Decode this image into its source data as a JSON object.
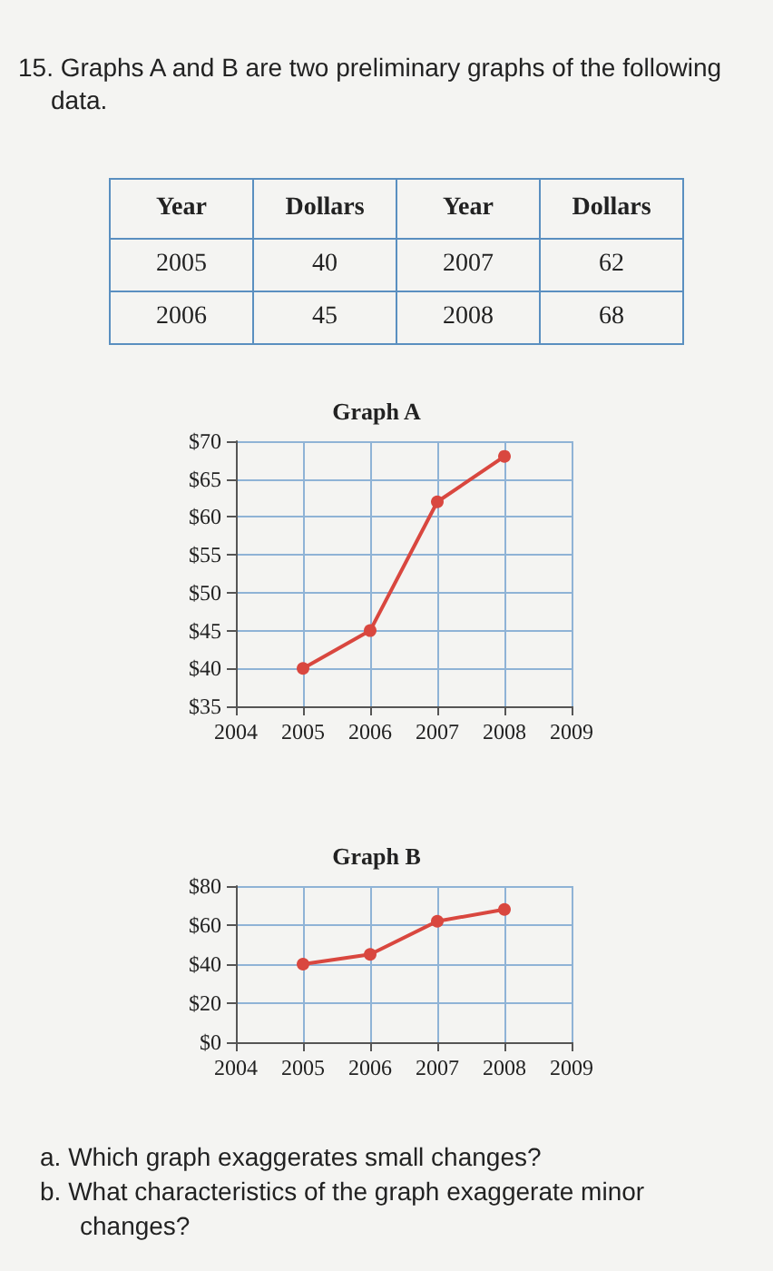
{
  "chart_data": [
    {
      "type": "other",
      "annotations": [
        "15. Graphs A and B are two preliminary graphs of the following data.",
        "Year",
        "Dollars",
        "Year",
        "Dollars",
        "2005",
        "40",
        "2007",
        "62",
        "2006",
        "45",
        "2008",
        "68"
      ]
    },
    {
      "type": "line",
      "title": "Graph A",
      "x": [
        2005,
        2006,
        2007,
        2008
      ],
      "values": [
        40,
        45,
        62,
        68
      ],
      "color": "#d9473f",
      "marker": "circle",
      "line_style": "solid",
      "grid": true,
      "xlim": [
        2004,
        2009
      ],
      "xticks": [
        2004,
        2005,
        2006,
        2007,
        2008,
        2009
      ],
      "ylim": [
        35,
        70
      ],
      "yticks": [
        {
          "value": 35,
          "label": "$35"
        },
        {
          "value": 40,
          "label": "$40"
        },
        {
          "value": 45,
          "label": "$45"
        },
        {
          "value": 50,
          "label": "$50"
        },
        {
          "value": 55,
          "label": "$55"
        },
        {
          "value": 60,
          "label": "$60"
        },
        {
          "value": 65,
          "label": "$65"
        },
        {
          "value": 70,
          "label": "$70"
        }
      ]
    },
    {
      "type": "line",
      "title": "Graph B",
      "x": [
        2005,
        2006,
        2007,
        2008
      ],
      "values": [
        40,
        45,
        62,
        68
      ],
      "color": "#d9473f",
      "marker": "circle",
      "line_style": "solid",
      "grid": true,
      "xlim": [
        2004,
        2009
      ],
      "xticks": [
        2004,
        2005,
        2006,
        2007,
        2008,
        2009
      ],
      "ylim": [
        0,
        80
      ],
      "yticks": [
        {
          "value": 0,
          "label": "$0"
        },
        {
          "value": 20,
          "label": "$20"
        },
        {
          "value": 40,
          "label": "$40"
        },
        {
          "value": 60,
          "label": "$60"
        },
        {
          "value": 80,
          "label": "$80"
        }
      ],
      "annotations": [
        "a. Which graph exaggerates small changes?",
        "b. What characteristics of the graph exaggerate minor changes?"
      ]
    }
  ]
}
